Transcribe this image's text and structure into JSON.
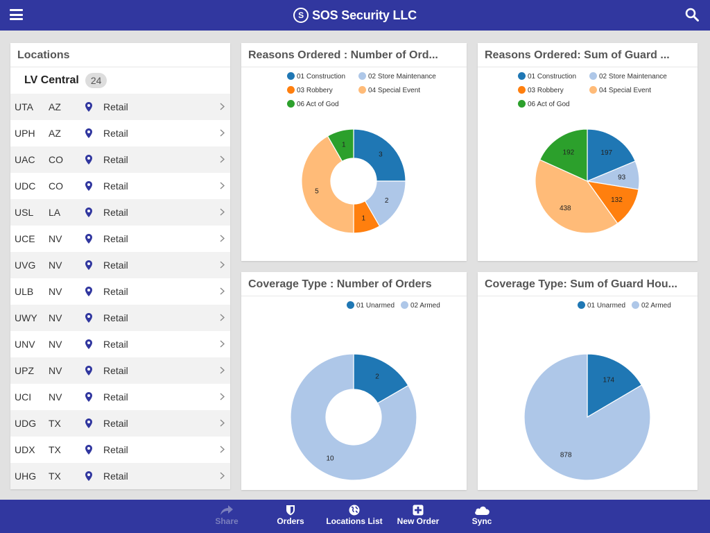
{
  "app": {
    "title": "SOS Security LLC",
    "logo_char": "S"
  },
  "header": {
    "menu_icon": "hamburger-icon",
    "search_icon": "search-icon"
  },
  "colors": {
    "brand": "#31379f",
    "c01": "#1f77b4",
    "c02": "#aec7e8",
    "c03": "#ff7f0e",
    "c04": "#ffbb78",
    "c06": "#2ca02c"
  },
  "locations": {
    "title": "Locations",
    "group": {
      "name": "LV Central",
      "count": "24"
    },
    "items": [
      {
        "code": "UTA",
        "state": "AZ",
        "type": "Retail"
      },
      {
        "code": "UPH",
        "state": "AZ",
        "type": "Retail"
      },
      {
        "code": "UAC",
        "state": "CO",
        "type": "Retail"
      },
      {
        "code": "UDC",
        "state": "CO",
        "type": "Retail"
      },
      {
        "code": "USL",
        "state": "LA",
        "type": "Retail"
      },
      {
        "code": "UCE",
        "state": "NV",
        "type": "Retail"
      },
      {
        "code": "UVG",
        "state": "NV",
        "type": "Retail"
      },
      {
        "code": "ULB",
        "state": "NV",
        "type": "Retail"
      },
      {
        "code": "UWY",
        "state": "NV",
        "type": "Retail"
      },
      {
        "code": "UNV",
        "state": "NV",
        "type": "Retail"
      },
      {
        "code": "UPZ",
        "state": "NV",
        "type": "Retail"
      },
      {
        "code": "UCI",
        "state": "NV",
        "type": "Retail"
      },
      {
        "code": "UDG",
        "state": "TX",
        "type": "Retail"
      },
      {
        "code": "UDX",
        "state": "TX",
        "type": "Retail"
      },
      {
        "code": "UHG",
        "state": "TX",
        "type": "Retail"
      }
    ]
  },
  "chart_data": [
    {
      "title": "Reasons Ordered : Number of Ord...",
      "type": "donut",
      "labels": [
        "01 Construction",
        "02 Store Maintenance",
        "03 Robbery",
        "04 Special Event",
        "06 Act of God"
      ],
      "values": [
        3,
        2,
        1,
        5,
        1
      ],
      "colors": [
        "#1f77b4",
        "#aec7e8",
        "#ff7f0e",
        "#ffbb78",
        "#2ca02c"
      ]
    },
    {
      "title": "Reasons Ordered: Sum of Guard ...",
      "type": "pie",
      "labels": [
        "01 Construction",
        "02 Store Maintenance",
        "03 Robbery",
        "04 Special Event",
        "06 Act of God"
      ],
      "values": [
        197,
        93,
        132,
        438,
        192
      ],
      "colors": [
        "#1f77b4",
        "#aec7e8",
        "#ff7f0e",
        "#ffbb78",
        "#2ca02c"
      ]
    },
    {
      "title": "Coverage Type : Number of Orders",
      "type": "donut",
      "labels": [
        "01 Unarmed",
        "02 Armed"
      ],
      "values": [
        2,
        10
      ],
      "colors": [
        "#1f77b4",
        "#aec7e8"
      ]
    },
    {
      "title": "Coverage Type: Sum of Guard Hou...",
      "type": "pie",
      "labels": [
        "01 Unarmed",
        "02 Armed"
      ],
      "values": [
        174,
        878
      ],
      "colors": [
        "#1f77b4",
        "#aec7e8"
      ]
    }
  ],
  "bottom_nav": [
    {
      "label": "Share",
      "icon": "share-icon",
      "enabled": false
    },
    {
      "label": "Orders",
      "icon": "shield-icon",
      "enabled": true
    },
    {
      "label": "Locations List",
      "icon": "globe-icon",
      "enabled": true
    },
    {
      "label": "New Order",
      "icon": "plus-square-icon",
      "enabled": true
    },
    {
      "label": "Sync",
      "icon": "cloud-icon",
      "enabled": true
    }
  ]
}
